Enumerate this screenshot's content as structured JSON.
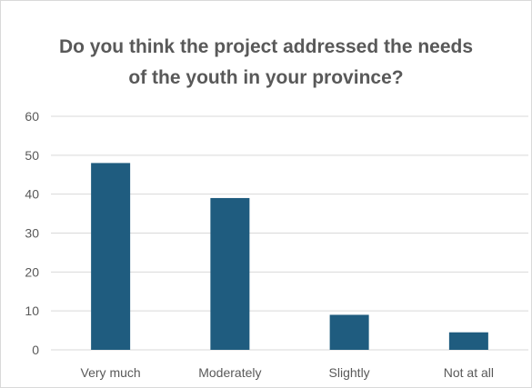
{
  "chart_data": {
    "type": "bar",
    "title_lines": [
      "Do you think the project addressed the needs",
      "of the youth in your province?"
    ],
    "categories": [
      "Very much",
      "Moderately",
      "Slightly",
      "Not at all"
    ],
    "values": [
      48,
      39,
      9,
      4.5
    ],
    "ylim": [
      0,
      60
    ],
    "yticks": [
      "0",
      "10",
      "20",
      "30",
      "40",
      "50",
      "60"
    ],
    "grid": true,
    "bar_color": "#1f5c7f",
    "grid_color": "#d9d9d9",
    "text_color": "#595959"
  }
}
